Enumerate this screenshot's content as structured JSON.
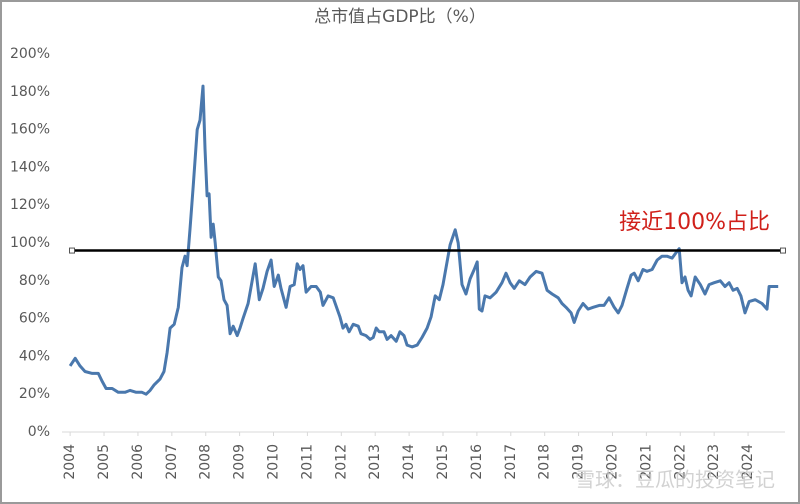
{
  "chart_data": {
    "type": "line",
    "title": "总市值占GDP比（%）",
    "x": [
      2004.0,
      2004.15,
      2004.29,
      2004.44,
      2004.65,
      2004.83,
      2004.94,
      2005.06,
      2005.24,
      2005.42,
      2005.62,
      2005.77,
      2005.95,
      2006.12,
      2006.24,
      2006.36,
      2006.48,
      2006.65,
      2006.77,
      2006.86,
      2006.95,
      2007.07,
      2007.19,
      2007.3,
      2007.39,
      2007.45,
      2007.54,
      2007.63,
      2007.75,
      2007.83,
      2007.92,
      2007.98,
      2008.04,
      2008.1,
      2008.16,
      2008.22,
      2008.28,
      2008.37,
      2008.45,
      2008.54,
      2008.63,
      2008.72,
      2008.81,
      2008.93,
      2009.01,
      2009.1,
      2009.25,
      2009.46,
      2009.58,
      2009.69,
      2009.81,
      2009.93,
      2010.02,
      2010.14,
      2010.22,
      2010.37,
      2010.49,
      2010.61,
      2010.7,
      2010.78,
      2010.87,
      2010.96,
      2011.11,
      2011.26,
      2011.38,
      2011.46,
      2011.61,
      2011.76,
      2011.88,
      2011.96,
      2012.05,
      2012.14,
      2012.23,
      2012.35,
      2012.5,
      2012.58,
      2012.73,
      2012.85,
      2012.94,
      2013.03,
      2013.12,
      2013.26,
      2013.35,
      2013.47,
      2013.62,
      2013.73,
      2013.85,
      2013.94,
      2014.09,
      2014.24,
      2014.38,
      2014.53,
      2014.65,
      2014.77,
      2014.89,
      2015.0,
      2015.21,
      2015.36,
      2015.45,
      2015.56,
      2015.68,
      2015.8,
      2015.92,
      2016.01,
      2016.07,
      2016.15,
      2016.24,
      2016.39,
      2016.57,
      2016.74,
      2016.86,
      2016.98,
      2017.1,
      2017.25,
      2017.42,
      2017.57,
      2017.75,
      2017.92,
      2018.07,
      2018.22,
      2018.4,
      2018.51,
      2018.63,
      2018.78,
      2018.87,
      2018.99,
      2019.13,
      2019.28,
      2019.43,
      2019.61,
      2019.75,
      2019.9,
      2020.05,
      2020.17,
      2020.28,
      2020.43,
      2020.55,
      2020.64,
      2020.76,
      2020.9,
      2021.02,
      2021.17,
      2021.32,
      2021.46,
      2021.61,
      2021.76,
      2021.88,
      2021.97,
      2022.05,
      2022.14,
      2022.23,
      2022.32,
      2022.44,
      2022.59,
      2022.73,
      2022.85,
      2023.0,
      2023.18,
      2023.32,
      2023.44,
      2023.56,
      2023.68,
      2023.79,
      2023.91,
      2024.03,
      2024.21,
      2024.41,
      2024.56,
      2024.62,
      2024.89
    ],
    "values": [
      35,
      39,
      35,
      32,
      31,
      31,
      27,
      23,
      23,
      21,
      21,
      22,
      21,
      21,
      20,
      22,
      25,
      28,
      32,
      42,
      55,
      57,
      66,
      87,
      93,
      88,
      108,
      130,
      160,
      165,
      183,
      150,
      125,
      126,
      103,
      110,
      100,
      82,
      80,
      70,
      67,
      52,
      56,
      51,
      55,
      60,
      68,
      89,
      70,
      76,
      85,
      91,
      77,
      83,
      76,
      66,
      77,
      78,
      89,
      86,
      88,
      74,
      77,
      77,
      74,
      67,
      72,
      71,
      65,
      61,
      55,
      57,
      53,
      57,
      56,
      52,
      51,
      49,
      50,
      55,
      53,
      53,
      49,
      51,
      48,
      53,
      51,
      46,
      45,
      46,
      50,
      55,
      61,
      72,
      70,
      78,
      99,
      107,
      100,
      78,
      73,
      81,
      86,
      90,
      65,
      64,
      72,
      71,
      74,
      79,
      84,
      79,
      76,
      80,
      78,
      82,
      85,
      84,
      75,
      73,
      71,
      68,
      66,
      63,
      58,
      64,
      68,
      65,
      66,
      67,
      67,
      71,
      66,
      63,
      67,
      76,
      83,
      84,
      80,
      86,
      85,
      86,
      91,
      93,
      93,
      92,
      95,
      97,
      79,
      82,
      75,
      72,
      82,
      78,
      73,
      78,
      79,
      80,
      77,
      79,
      75,
      76,
      72,
      63,
      69,
      70,
      68,
      65,
      77,
      77
    ],
    "color": "#4a78ad",
    "xlim": [
      2003.76,
      2025.09
    ],
    "xticks": [
      2004,
      2005,
      2006,
      2007,
      2008,
      2009,
      2010,
      2011,
      2012,
      2013,
      2014,
      2015,
      2016,
      2017,
      2018,
      2019,
      2020,
      2021,
      2022,
      2023,
      2024
    ],
    "ylim": [
      0,
      200
    ],
    "yticks": [
      {
        "value": 0,
        "label": "0%"
      },
      {
        "value": 20,
        "label": "20%"
      },
      {
        "value": 40,
        "label": "40%"
      },
      {
        "value": 60,
        "label": "60%"
      },
      {
        "value": 80,
        "label": "80%"
      },
      {
        "value": 100,
        "label": "100%"
      },
      {
        "value": 120,
        "label": "120%"
      },
      {
        "value": 140,
        "label": "140%"
      },
      {
        "value": 160,
        "label": "160%"
      },
      {
        "value": 180,
        "label": "180%"
      },
      {
        "value": 200,
        "label": "200%"
      }
    ],
    "hline": {
      "value": 96,
      "color": "#000000"
    },
    "annotation": {
      "text": "接近100%占比",
      "color": "#d0201a"
    },
    "watermark": "雪球：豆瓜的投资笔记"
  }
}
